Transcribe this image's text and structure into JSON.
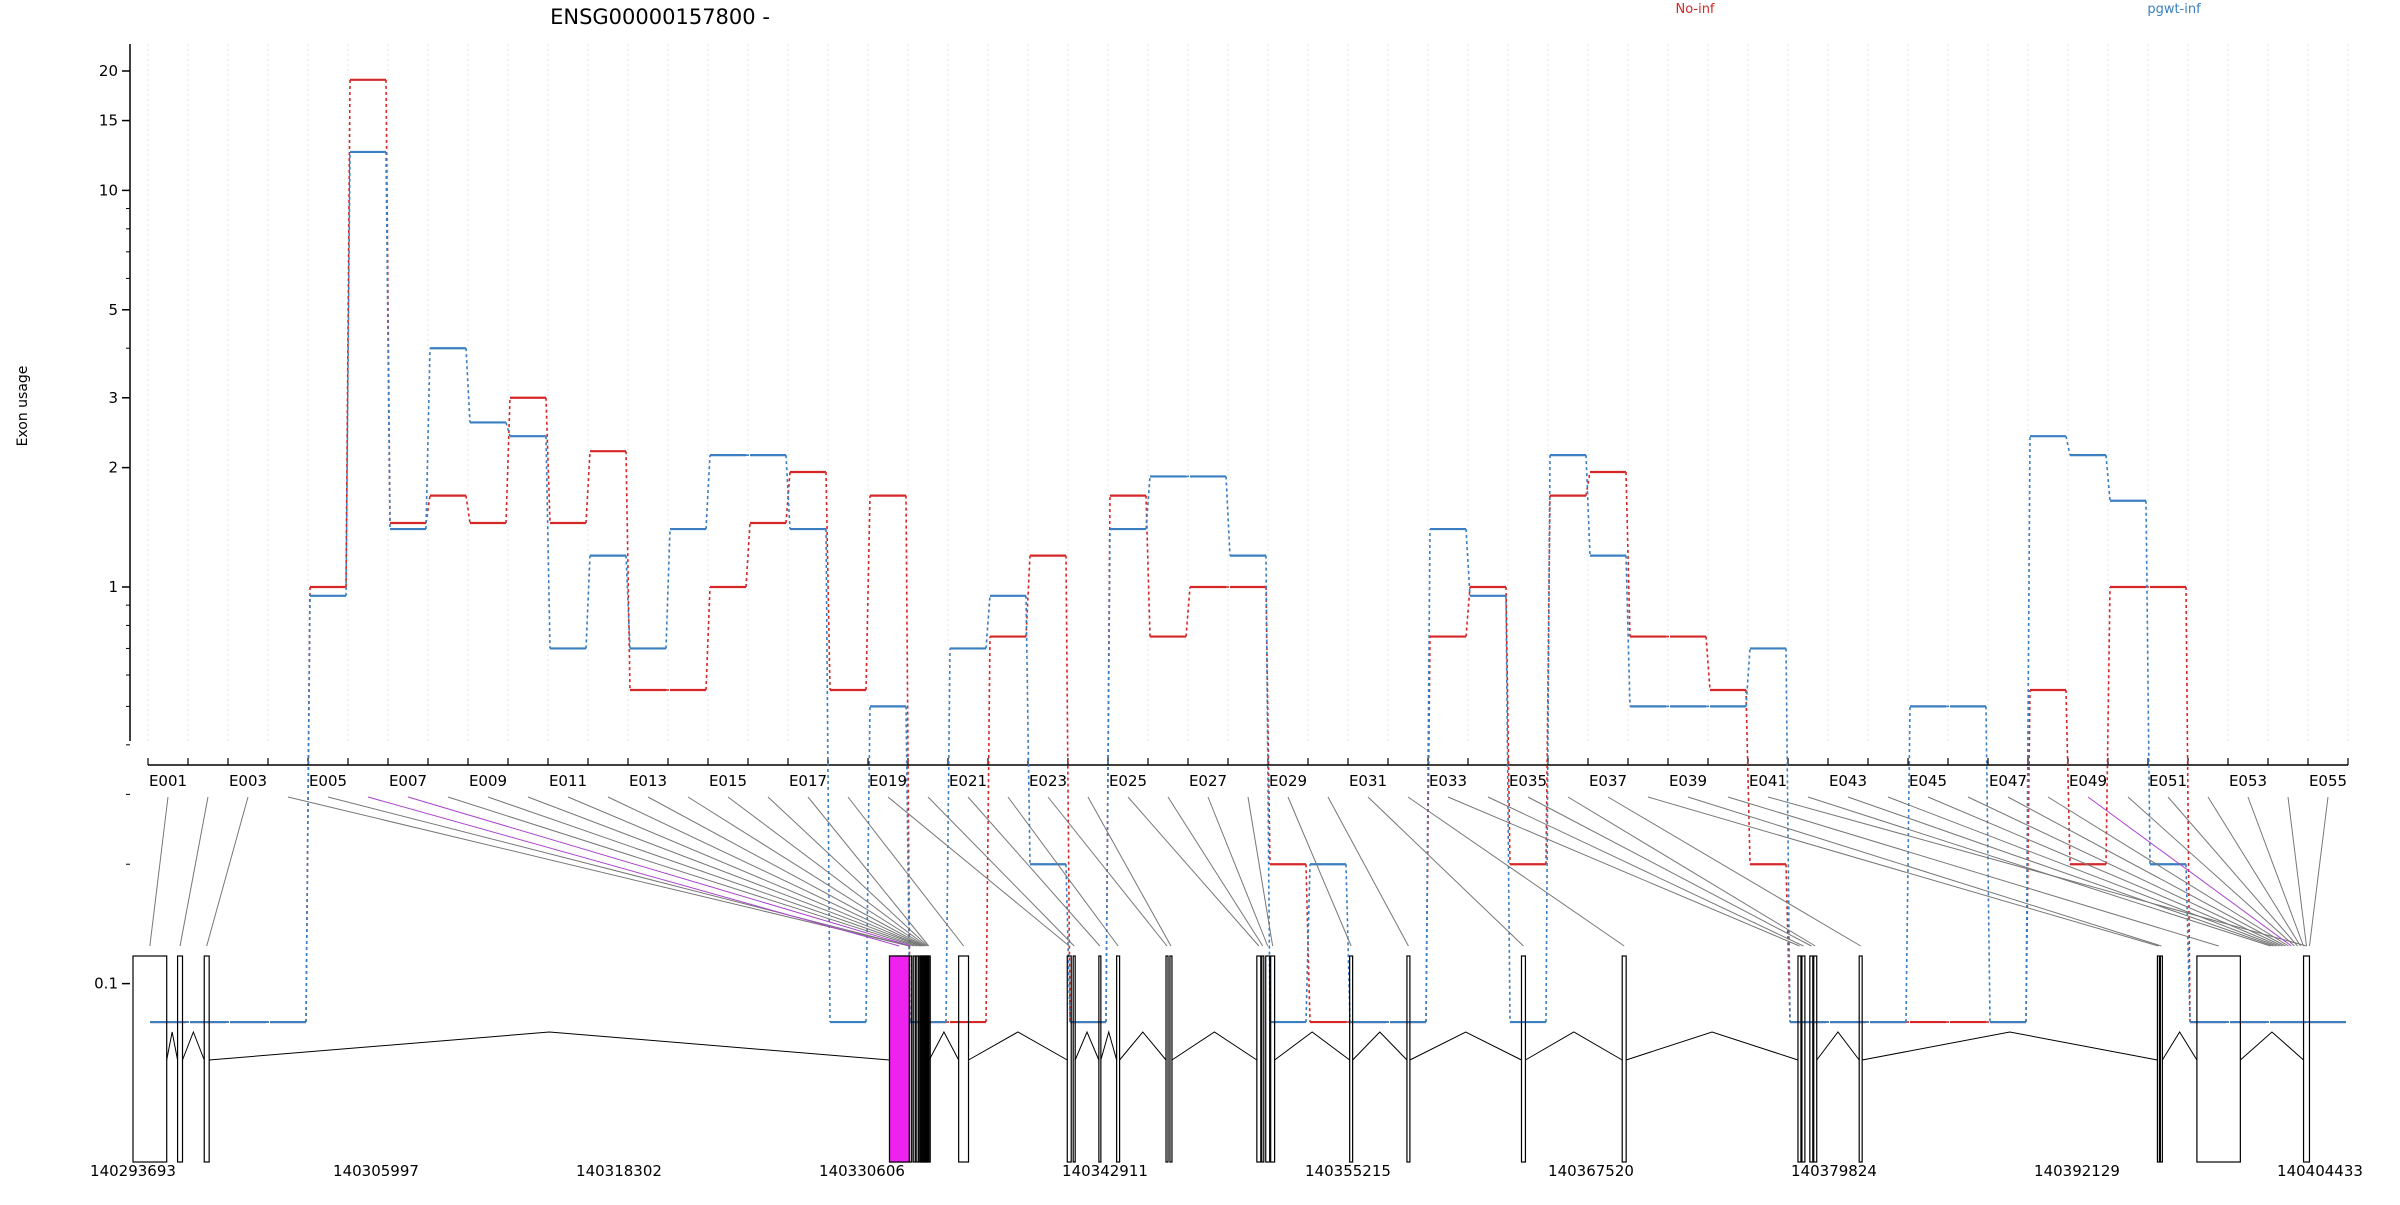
{
  "chart_data": {
    "type": "line",
    "title": "ENSG00000157800 -",
    "ylabel": "Exon usage",
    "xlabel": "",
    "y_scale": "log",
    "ylim": [
      0.08,
      22
    ],
    "yticks": [
      0.1,
      1,
      2,
      3,
      5,
      10,
      15,
      20
    ],
    "grid": "vertical dotted, light",
    "legend": "top, horizontal",
    "exon_labels_shown": [
      "E001",
      "E003",
      "E005",
      "E007",
      "E009",
      "E011",
      "E013",
      "E015",
      "E017",
      "E019",
      "E021",
      "E023",
      "E025",
      "E027",
      "E029",
      "E031",
      "E033",
      "E035",
      "E037",
      "E039",
      "E041",
      "E043",
      "E045",
      "E047",
      "E049",
      "E051",
      "E053",
      "E055"
    ],
    "x_exons": [
      "E001",
      "E002",
      "E003",
      "E004",
      "E005",
      "E006",
      "E007",
      "E008",
      "E009",
      "E010",
      "E011",
      "E012",
      "E013",
      "E014",
      "E015",
      "E016",
      "E017",
      "E018",
      "E019",
      "E020",
      "E021",
      "E022",
      "E023",
      "E024",
      "E025",
      "E026",
      "E027",
      "E028",
      "E029",
      "E030",
      "E031",
      "E032",
      "E033",
      "E034",
      "E035",
      "E036",
      "E037",
      "E038",
      "E039",
      "E040",
      "E041",
      "E042",
      "E043",
      "E044",
      "E045",
      "E046",
      "E047",
      "E048",
      "E049",
      "E050",
      "E051",
      "E052",
      "E053",
      "E054",
      "E055"
    ],
    "series": [
      {
        "name": "No-inf",
        "color": "#d62728",
        "values": [
          0.08,
          0.08,
          0.08,
          0.08,
          1.0,
          19,
          1.45,
          1.7,
          1.45,
          3.0,
          1.45,
          2.2,
          0.55,
          0.55,
          1.0,
          1.45,
          1.95,
          0.55,
          1.7,
          0.08,
          0.08,
          0.75,
          1.2,
          0.08,
          1.7,
          0.75,
          1.0,
          1.0,
          0.2,
          0.08,
          0.08,
          0.08,
          0.75,
          1.0,
          0.2,
          1.7,
          1.95,
          0.75,
          0.75,
          0.55,
          0.2,
          0.08,
          0.08,
          0.08,
          0.08,
          0.08,
          0.08,
          0.55,
          0.2,
          1.0,
          1.0,
          0.08,
          0.08,
          0.08,
          0.08
        ]
      },
      {
        "name": "pgwt-inf",
        "color": "#3a7fc1",
        "values": [
          0.08,
          0.08,
          0.08,
          0.08,
          0.95,
          12.5,
          1.4,
          4.0,
          2.6,
          2.4,
          0.7,
          1.2,
          0.7,
          1.4,
          2.15,
          2.15,
          1.4,
          0.08,
          0.5,
          0.08,
          0.7,
          0.95,
          0.2,
          0.08,
          1.4,
          1.9,
          1.9,
          1.2,
          0.08,
          0.2,
          0.08,
          0.08,
          1.4,
          0.95,
          0.08,
          2.15,
          1.2,
          0.5,
          0.5,
          0.5,
          0.7,
          0.08,
          0.08,
          0.08,
          0.5,
          0.5,
          0.08,
          2.4,
          2.15,
          1.65,
          0.2,
          0.08,
          0.08,
          0.08,
          0.08
        ]
      }
    ],
    "genomic_axis": {
      "labels": [
        "140293693",
        "140305997",
        "140318302",
        "140330606",
        "140342911",
        "140355215",
        "140367520",
        "140379824",
        "140392129",
        "140404433"
      ],
      "range": [
        140293693,
        140404433
      ]
    },
    "highlight_color": "#ee22ee",
    "highlighted_exons": [
      "E006"
    ]
  }
}
